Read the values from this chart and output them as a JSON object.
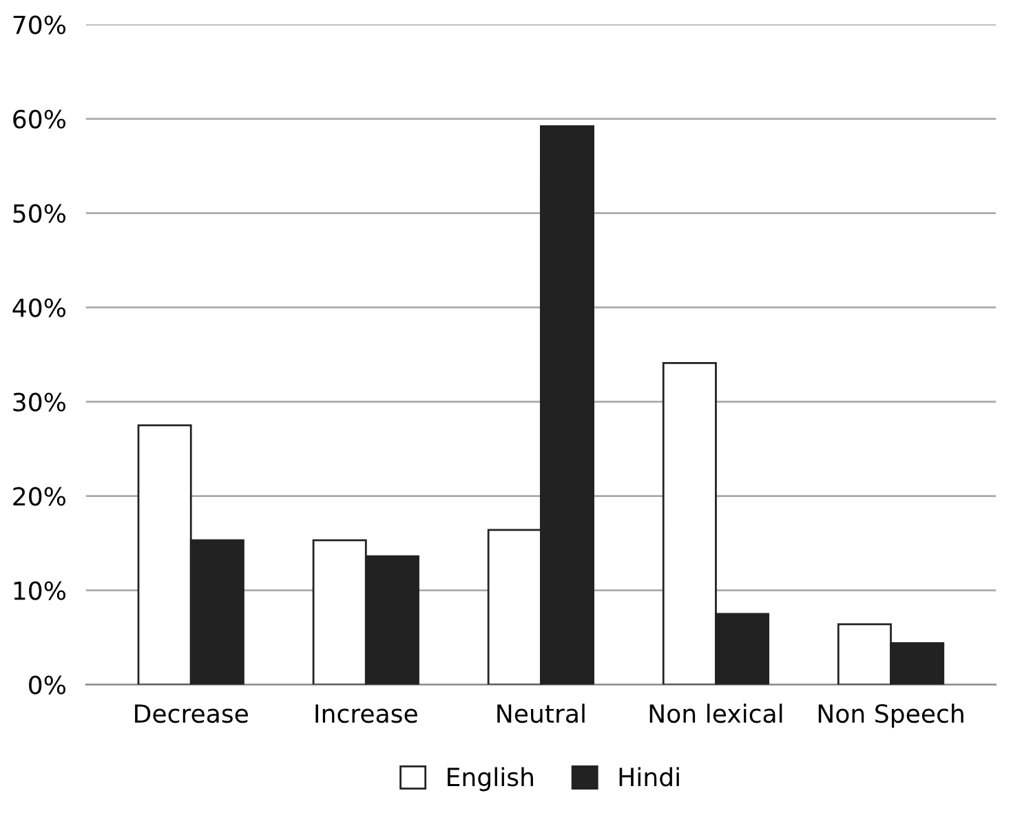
{
  "chart_data": {
    "type": "bar",
    "categories": [
      "Decrease",
      "Increase",
      "Neutral",
      "Non lexical",
      "Non Speech"
    ],
    "series": [
      {
        "name": "English",
        "color": "#ffffff",
        "values": [
          27.5,
          15.3,
          16.4,
          34.1,
          6.4
        ]
      },
      {
        "name": "Hindi",
        "color": "#222222",
        "values": [
          15.3,
          13.6,
          59.2,
          7.5,
          4.4
        ]
      }
    ],
    "ylim": [
      0,
      70
    ],
    "yticks": [
      {
        "value": 0,
        "label": "0%"
      },
      {
        "value": 10,
        "label": "10%"
      },
      {
        "value": 20,
        "label": "20%"
      },
      {
        "value": 30,
        "label": "30%"
      },
      {
        "value": 40,
        "label": "40%"
      },
      {
        "value": 50,
        "label": "50%"
      },
      {
        "value": 60,
        "label": "60%"
      },
      {
        "value": 70,
        "label": "70%"
      }
    ],
    "grid": "y",
    "legend": "bottom"
  }
}
